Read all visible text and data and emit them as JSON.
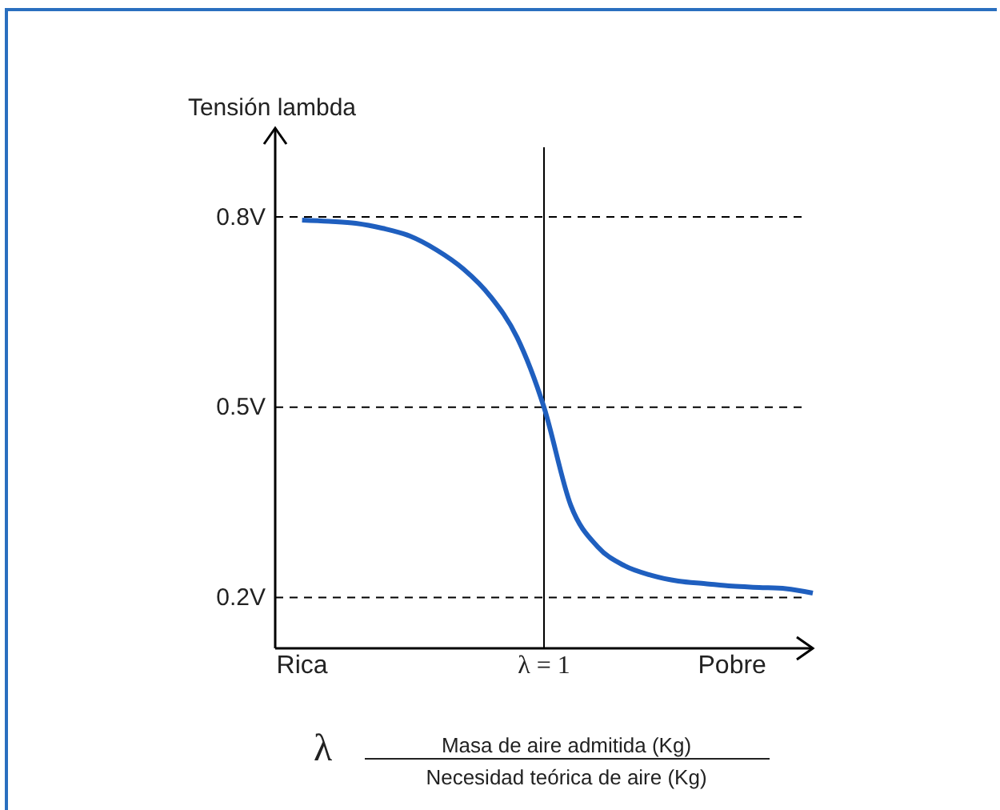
{
  "chart_data": {
    "type": "line",
    "ylabel": "Tensión lambda",
    "categories": [
      null,
      "Rica",
      null,
      null,
      null,
      null,
      null,
      null,
      null,
      null,
      "λ = 1",
      null,
      null,
      null,
      null,
      null,
      null,
      "Pobre",
      null,
      null,
      null
    ],
    "series": [
      {
        "color": "#1f5fbf",
        "values": [
          null,
          0.795,
          0.793,
          0.79,
          0.782,
          0.77,
          0.748,
          0.718,
          0.675,
          0.61,
          0.5,
          0.345,
          0.28,
          0.25,
          0.235,
          0.226,
          0.222,
          0.218,
          0.216,
          0.214,
          0.207
        ]
      }
    ],
    "ylim": [
      0.12,
      0.94
    ],
    "yticks": [
      {
        "value": 0.2,
        "label": "0.2V"
      },
      {
        "value": 0.5,
        "label": "0.5V"
      },
      {
        "value": 0.8,
        "label": "0.8V"
      }
    ],
    "ref_lines": [
      {
        "axis": "x",
        "value": "λ = 1",
        "color": "#000000",
        "line_style": "solid"
      },
      {
        "axis": "y",
        "value": 0.8,
        "color": "#000000",
        "line_style": "dashed"
      },
      {
        "axis": "y",
        "value": 0.5,
        "color": "#000000",
        "line_style": "dashed"
      },
      {
        "axis": "y",
        "value": 0.2,
        "color": "#000000",
        "line_style": "dashed"
      }
    ],
    "annotations": [
      "λ",
      "Masa de aire admitida (Kg)",
      "Necesidad teórica de aire (Kg)"
    ],
    "line_style": "solid",
    "marker": "none",
    "grid": false
  }
}
